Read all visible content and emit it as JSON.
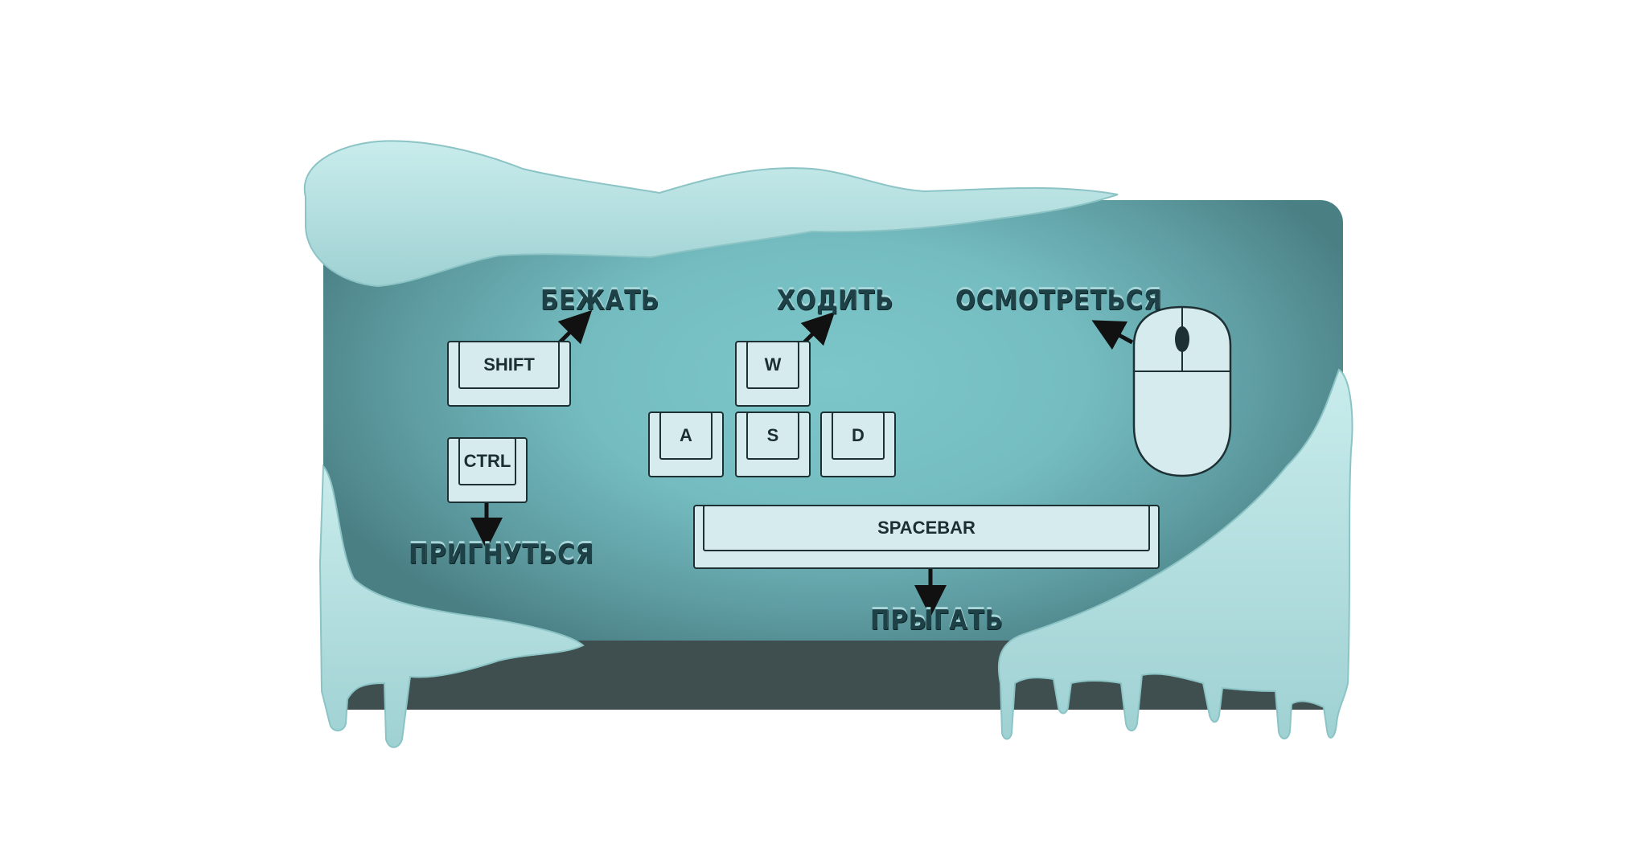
{
  "controls": {
    "run": {
      "key": "SHIFT",
      "action": "БЕЖАТЬ"
    },
    "walk": {
      "keys": [
        "W",
        "A",
        "S",
        "D"
      ],
      "action": "ХОДИТЬ"
    },
    "crouch": {
      "key": "CTRL",
      "action": "ПРИГНУТЬСЯ"
    },
    "jump": {
      "key": "SPACEBAR",
      "action": "ПРЫГАТЬ"
    },
    "look": {
      "device": "mouse-icon",
      "action": "ОСМОТРЕТЬСЯ"
    }
  },
  "colors": {
    "panel": "#74bcc0",
    "ice": "#b6e0e1",
    "key_face": "#d6ebee",
    "outline": "#1d3033",
    "label_text": "#1d4146",
    "floor": "#3f4e4e"
  }
}
